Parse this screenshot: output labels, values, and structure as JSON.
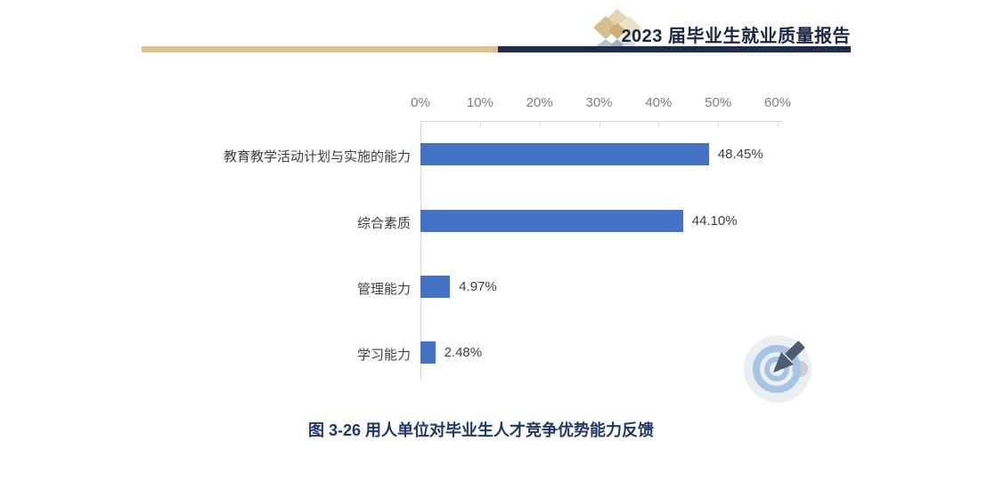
{
  "header": {
    "title": "2023 届毕业生就业质量报告",
    "logo_icon": "diamond-cluster-logo"
  },
  "chart_data": {
    "type": "bar",
    "orientation": "horizontal",
    "title": "",
    "categories": [
      "教育教学活动计划与实施的能力",
      "综合素质",
      "管理能力",
      "学习能力"
    ],
    "values": [
      48.45,
      44.1,
      4.97,
      2.48
    ],
    "value_labels": [
      "48.45%",
      "44.10%",
      "4.97%",
      "2.48%"
    ],
    "x_tick_labels": [
      "0%",
      "10%",
      "20%",
      "30%",
      "40%",
      "50%",
      "60%"
    ],
    "xlim": [
      0,
      60
    ],
    "grid": false,
    "legend": "none",
    "bar_color": "#4472c4",
    "axis_color": "#d6d6d6",
    "tick_label_color": "#7f7f7f",
    "category_label_color": "#3f3f3f"
  },
  "caption": "图 3-26 用人单位对毕业生人才竞争优势能力反馈",
  "decorations": {
    "target_icon": "target-with-arrow",
    "rule_gold_color": "#dcc188",
    "rule_navy_color": "#1f2b4e",
    "caption_color": "#1f3864",
    "title_color": "#1b2740"
  }
}
